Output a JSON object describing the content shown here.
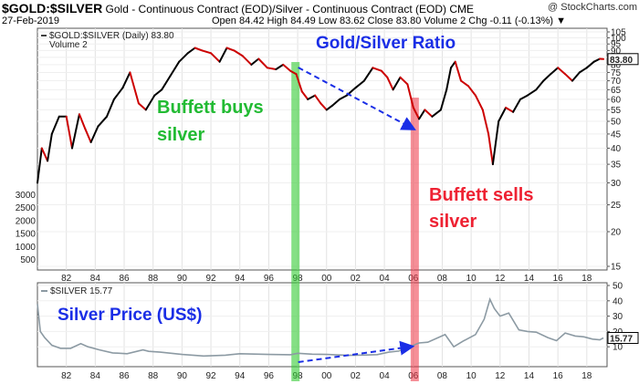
{
  "header": {
    "symbol": "$GOLD:$SILVER",
    "description": "Gold - Continuous Contract (EOD)/Silver - Continuous Contract (EOD)",
    "exchange": "CME",
    "source": "@ StockCharts.com",
    "date": "27-Feb-2019",
    "ohlc_text": "Open 84.42  High 84.49  Low 83.62  Close 83.80  Volume 2  Chg -0.11 (-0.13%) ▼"
  },
  "colors": {
    "ratio_up": "#000000",
    "ratio_down": "#cc0000",
    "silver_line": "#8c9aa3",
    "buy_band": "#33cc33",
    "sell_band": "#ee3344",
    "arrow": "#1a2ee6",
    "annotation_blue": "#1a2ee6",
    "annotation_green": "#22bb33",
    "annotation_red": "#ee2233"
  },
  "chart_data": [
    {
      "type": "line",
      "title": "Gold/Silver Ratio",
      "legend": [
        "$GOLD:$SILVER (Daily) 83.80",
        "Volume 2"
      ],
      "last_value_label": "83.80",
      "y_scale": "log",
      "ylim": [
        15,
        105
      ],
      "yticks": [
        15,
        20,
        25,
        30,
        35,
        40,
        45,
        50,
        55,
        60,
        65,
        70,
        75,
        80,
        85,
        90,
        95,
        100,
        105
      ],
      "volume_ticks": [
        "3000",
        "2500",
        "2000",
        "1500",
        "1000",
        "500"
      ],
      "xticks": [
        "82",
        "84",
        "86",
        "88",
        "90",
        "92",
        "94",
        "96",
        "98",
        "00",
        "02",
        "04",
        "06",
        "08",
        "10",
        "12",
        "14",
        "16",
        "18"
      ],
      "x": [
        1980.0,
        1980.3,
        1980.7,
        1981.0,
        1981.5,
        1982.0,
        1982.4,
        1982.9,
        1983.3,
        1983.7,
        1984.2,
        1984.8,
        1985.3,
        1985.9,
        1986.4,
        1987.0,
        1987.5,
        1988.1,
        1988.6,
        1989.2,
        1989.8,
        1990.4,
        1990.9,
        1991.4,
        1992.0,
        1992.6,
        1993.1,
        1993.6,
        1994.2,
        1994.8,
        1995.3,
        1995.9,
        1996.5,
        1997.0,
        1997.5,
        1997.9,
        1998.3,
        1998.7,
        1999.2,
        1999.6,
        2000.0,
        2000.4,
        2000.9,
        2001.4,
        2002.0,
        2002.6,
        2003.2,
        2003.8,
        2004.2,
        2004.6,
        2005.1,
        2005.6,
        2006.0,
        2006.4,
        2006.8,
        2007.3,
        2007.9,
        2008.3,
        2008.6,
        2008.9,
        2009.3,
        2009.8,
        2010.3,
        2010.8,
        2011.2,
        2011.5,
        2011.9,
        2012.4,
        2012.9,
        2013.4,
        2013.9,
        2014.5,
        2015.0,
        2015.5,
        2016.0,
        2016.5,
        2017.0,
        2017.5,
        2018.0,
        2018.5,
        2018.9,
        2019.15
      ],
      "y": [
        30,
        40,
        36,
        45,
        52,
        52,
        40,
        53,
        47,
        42,
        48,
        52,
        60,
        66,
        75,
        58,
        55,
        62,
        65,
        73,
        82,
        88,
        92,
        90,
        88,
        82,
        92,
        90,
        86,
        80,
        84,
        78,
        77,
        80,
        76,
        74,
        64,
        60,
        62,
        58,
        55,
        57,
        60,
        62,
        66,
        70,
        78,
        76,
        72,
        65,
        72,
        68,
        56,
        51,
        55,
        52,
        55,
        65,
        78,
        82,
        70,
        67,
        62,
        55,
        45,
        35,
        50,
        56,
        54,
        60,
        62,
        65,
        70,
        74,
        78,
        74,
        70,
        75,
        78,
        82,
        84,
        83.8
      ],
      "annotations": [
        "Buffett buys silver",
        "Buffett sells silver"
      ]
    },
    {
      "type": "line",
      "title": "Silver Price (US$)",
      "legend": [
        "$SILVER 15.77"
      ],
      "last_value_label": "15.77",
      "ylim": [
        0,
        50
      ],
      "yticks": [
        10,
        20,
        30,
        40,
        50
      ],
      "x": [
        1980.0,
        1980.2,
        1980.5,
        1981.0,
        1981.6,
        1982.3,
        1983.0,
        1983.5,
        1984.3,
        1985.2,
        1986.2,
        1987.3,
        1987.7,
        1988.5,
        1990.0,
        1991.5,
        1993.0,
        1994.0,
        1996.0,
        1997.5,
        1998.0,
        1999.0,
        2000.0,
        2001.5,
        2002.5,
        2003.5,
        2004.3,
        2005.0,
        2006.0,
        2006.4,
        2007.0,
        2008.2,
        2008.8,
        2009.5,
        2010.3,
        2010.9,
        2011.3,
        2011.6,
        2012.0,
        2012.6,
        2013.3,
        2013.9,
        2014.5,
        2015.3,
        2015.9,
        2016.5,
        2017.2,
        2017.8,
        2018.4,
        2018.9,
        2019.15
      ],
      "y": [
        38,
        20,
        16,
        11,
        9,
        9,
        12,
        10,
        8,
        6,
        5.5,
        8,
        7,
        6.5,
        5,
        4,
        4.5,
        5.5,
        5,
        4.8,
        5.8,
        5.2,
        5,
        4.4,
        4.6,
        4.9,
        6.5,
        7.2,
        11,
        12.5,
        13,
        18,
        10,
        14,
        18,
        28,
        41,
        35,
        30,
        32,
        21,
        20,
        19.5,
        16,
        14,
        19,
        17,
        16.5,
        15,
        14.5,
        15.77
      ]
    }
  ],
  "annotation_text": {
    "title": "Gold/Silver Ratio",
    "buy_line1": "Buffett buys",
    "buy_line2": "silver",
    "sell_line1": "Buffett sells",
    "sell_line2": "silver",
    "silver_title": "Silver Price (US$)"
  }
}
